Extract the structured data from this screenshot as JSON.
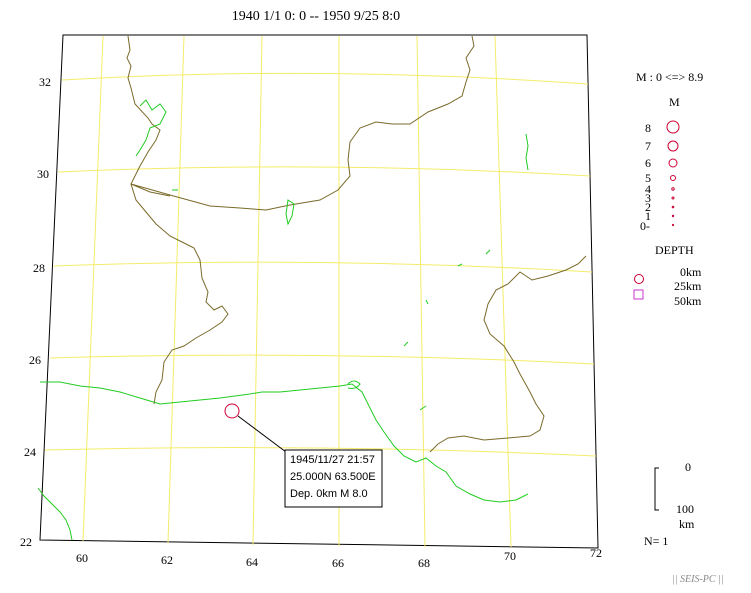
{
  "title": "1940 1/1 0: 0 -- 1950 9/25 8:0",
  "lat_labels": [
    "32",
    "30",
    "28",
    "26",
    "24",
    "22"
  ],
  "lon_labels": [
    "60",
    "62",
    "64",
    "66",
    "68",
    "70",
    "72"
  ],
  "legend": {
    "magnitude_range": "M : 0 <=> 8.9",
    "magnitude_header": "M",
    "magnitude_levels": [
      "8",
      "7",
      "6",
      "5",
      "4",
      "3",
      "2",
      "1",
      "0-"
    ],
    "depth_header": "DEPTH",
    "depth_levels": [
      "0km",
      "25km",
      "50km"
    ],
    "scale_top": "0",
    "scale_bottom": "100",
    "scale_unit": "km",
    "count": "N= 1"
  },
  "event": {
    "datetime": "1945/11/27 21:57",
    "location": "25.000N  63.500E",
    "depth_mag": "Dep. 0km    M 8.0",
    "lat": 25.0,
    "lon": 63.5,
    "mag": 8.0,
    "depth_km": 0
  },
  "colors": {
    "grid": "#f4ec6a",
    "border": "#7a6a2a",
    "coast": "#22cc22",
    "event": "#cc0033",
    "depth_deep": "#cc33cc"
  },
  "footer": "|| SEIS-PC ||"
}
